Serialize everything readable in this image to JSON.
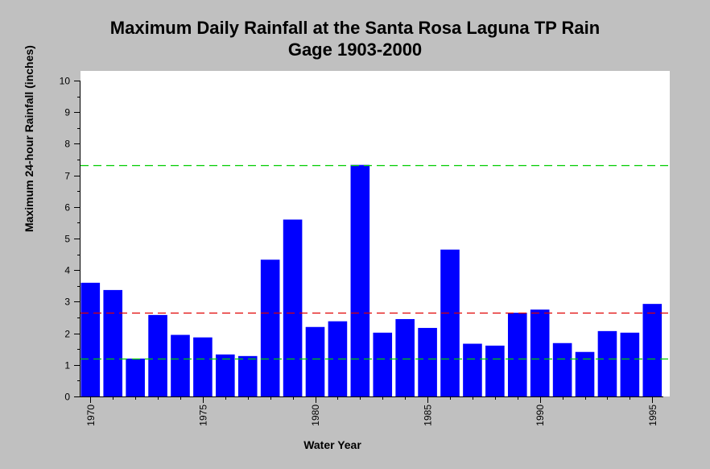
{
  "chart_data": {
    "type": "bar",
    "title_line1": "Maximum Daily Rainfall at the Santa Rosa Laguna TP Rain",
    "title_line2": "Gage 1903-2000",
    "xlabel": "Water Year",
    "ylabel": "Maximum 24-hour Rainfall (inches)",
    "ylim": [
      0,
      10
    ],
    "yticks": [
      0,
      1,
      2,
      3,
      4,
      5,
      6,
      7,
      8,
      9,
      10
    ],
    "xticks": [
      1970,
      1975,
      1980,
      1985,
      1990,
      1995
    ],
    "x": [
      1970,
      1971,
      1972,
      1973,
      1974,
      1975,
      1976,
      1977,
      1978,
      1979,
      1980,
      1981,
      1982,
      1983,
      1984,
      1985,
      1986,
      1987,
      1988,
      1989,
      1990,
      1991,
      1992,
      1993,
      1994,
      1995
    ],
    "values": [
      3.6,
      3.37,
      1.2,
      2.58,
      1.95,
      1.87,
      1.33,
      1.28,
      4.33,
      5.6,
      2.2,
      2.38,
      7.33,
      2.02,
      2.45,
      2.17,
      4.65,
      1.67,
      1.61,
      2.65,
      2.75,
      1.69,
      1.41,
      2.07,
      2.02,
      2.93
    ],
    "reference_lines": [
      {
        "value": 7.33,
        "color": "#00cc00"
      },
      {
        "value": 2.65,
        "color": "#e00000"
      },
      {
        "value": 1.2,
        "color": "#00cc00"
      }
    ],
    "bar_color": "#0000ff",
    "plot_background": "#ffffff",
    "page_background": "#c0c0c0"
  }
}
